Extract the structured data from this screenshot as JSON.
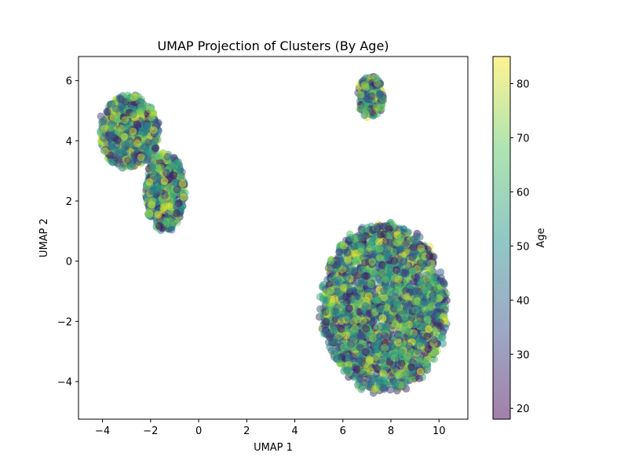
{
  "chart_data": {
    "type": "scatter",
    "title": "UMAP Projection of Clusters (By Age)",
    "xlabel": "UMAP 1",
    "ylabel": "UMAP 2",
    "xlim": [
      -5.0,
      11.2
    ],
    "ylim": [
      -5.25,
      6.8
    ],
    "xticks": [
      -4,
      -2,
      0,
      2,
      4,
      6,
      8,
      10
    ],
    "yticks": [
      -4,
      -2,
      0,
      2,
      4,
      6
    ],
    "grid": false,
    "point_alpha": 0.5,
    "colormap": "viridis",
    "colormap_stops": [
      "#440154",
      "#3b528b",
      "#21918c",
      "#5ec962",
      "#fde725"
    ],
    "colorbar": {
      "label": "Age",
      "range": [
        18,
        85
      ],
      "ticks": [
        20,
        30,
        40,
        50,
        60,
        70,
        80
      ]
    },
    "clusters": [
      {
        "shape": "ellipse",
        "center": [
          -2.9,
          4.3
        ],
        "radius": [
          1.3,
          1.25
        ],
        "count": 650
      },
      {
        "shape": "ellipse",
        "center": [
          -1.4,
          2.3
        ],
        "radius": [
          0.85,
          1.35
        ],
        "count": 550
      },
      {
        "shape": "ellipse",
        "center": [
          7.15,
          5.45
        ],
        "radius": [
          0.55,
          0.75
        ],
        "count": 200
      },
      {
        "shape": "ellipse",
        "center": [
          7.7,
          -1.55
        ],
        "radius": [
          2.7,
          2.9
        ],
        "count": 2600
      }
    ]
  }
}
